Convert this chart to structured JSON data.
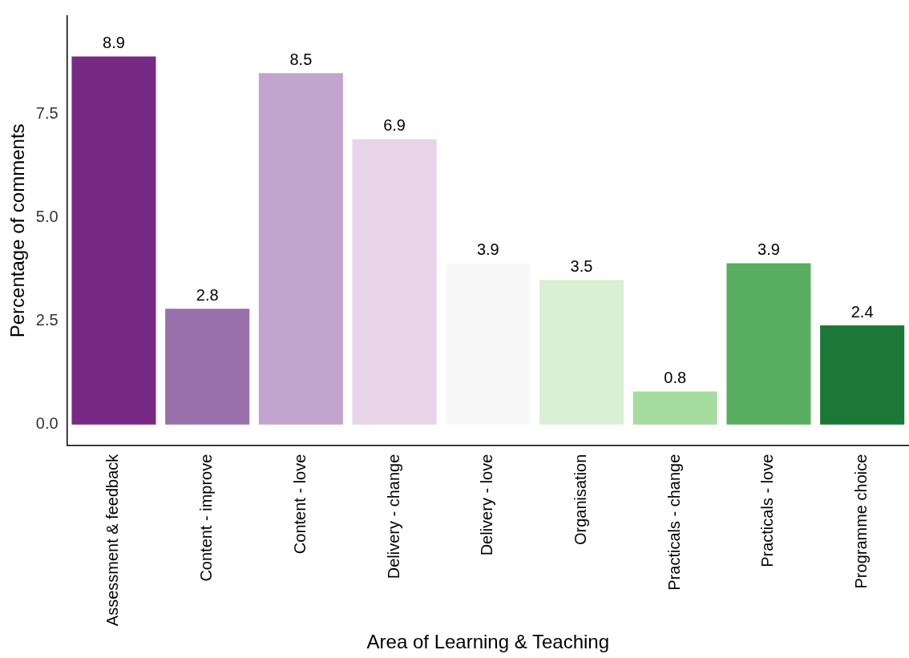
{
  "chart_data": {
    "type": "bar",
    "xlabel": "Area of Learning & Teaching",
    "ylabel": "Percentage of comments",
    "categories": [
      "Assessment & feedback",
      "Content - improve",
      "Content - love",
      "Delivery - change",
      "Delivery - love",
      "Organisation",
      "Practicals - change",
      "Practicals - love",
      "Programme choice"
    ],
    "values": [
      8.9,
      2.8,
      8.5,
      6.9,
      3.9,
      3.5,
      0.8,
      3.9,
      2.4
    ],
    "colors": [
      "#762a83",
      "#9970ab",
      "#c2a5cf",
      "#e7d4e8",
      "#f7f7f7",
      "#d9f0d3",
      "#a6dba0",
      "#5aae61",
      "#1b7837"
    ],
    "ylim": [
      -0.5,
      9.88
    ],
    "yticks": [
      {
        "value": 0,
        "label": "0.0"
      },
      {
        "value": 2.5,
        "label": "2.5"
      },
      {
        "value": 5,
        "label": "5.0"
      },
      {
        "value": 7.5,
        "label": "7.5"
      }
    ],
    "data_labels": true,
    "grid": false,
    "legend": false
  }
}
